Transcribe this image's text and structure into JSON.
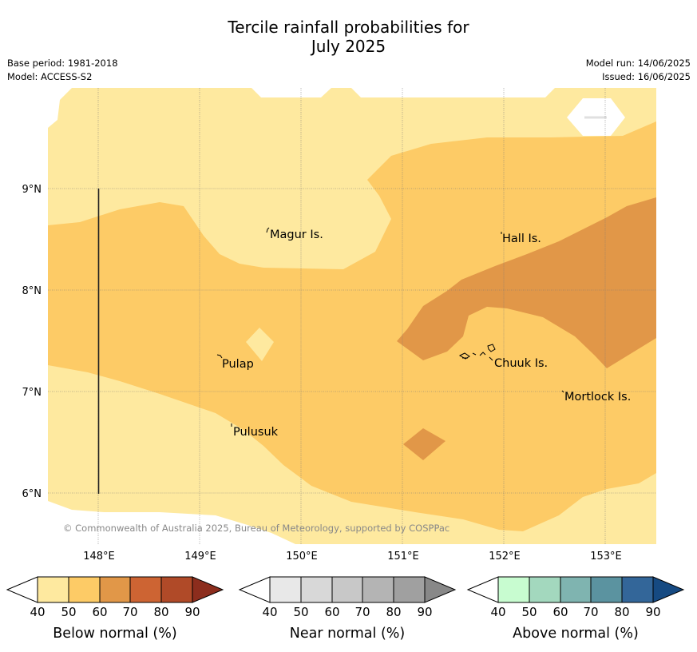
{
  "header": {
    "title_line1": "Tercile rainfall probabilities for",
    "title_line2": "July 2025",
    "base_period": "Base period: 1981-2018",
    "model": "Model: ACCESS-S2",
    "model_run": "Model run: 14/06/2025",
    "issued": "Issued: 16/06/2025"
  },
  "map": {
    "x_ticks": [
      "148°E",
      "149°E",
      "150°E",
      "151°E",
      "152°E",
      "153°E"
    ],
    "y_ticks": [
      "9°N",
      "8°N",
      "7°N",
      "6°N"
    ],
    "places": [
      "Magur Is.",
      "Hall Is.",
      "Pulap",
      "Chuuk Is.",
      "Mortlock Is.",
      "Pulusuk"
    ],
    "copyright": "© Commonwealth of Australia 2025, Bureau of Meteorology, supported by COSPPac"
  },
  "colorbars": [
    {
      "caption": "Below normal (%)",
      "labels": [
        "40",
        "50",
        "60",
        "70",
        "80",
        "90"
      ],
      "colors": [
        "#fee99f",
        "#fdcb66",
        "#e19748",
        "#cd6433",
        "#b04a28",
        "#8c2d1d"
      ]
    },
    {
      "caption": "Near normal (%)",
      "labels": [
        "40",
        "50",
        "60",
        "70",
        "80",
        "90"
      ],
      "colors": [
        "#e8e8e8",
        "#d8d8d8",
        "#c8c8c8",
        "#b4b4b4",
        "#a0a0a0",
        "#888888"
      ]
    },
    {
      "caption": "Above normal (%)",
      "labels": [
        "40",
        "50",
        "60",
        "70",
        "80",
        "90"
      ],
      "colors": [
        "#c8fcd0",
        "#a3d8be",
        "#7fb4b0",
        "#5b93a0",
        "#336699",
        "#164a82"
      ]
    }
  ],
  "colors": {
    "below_40_50": "#fee99f",
    "below_50_60": "#fdcb66",
    "below_60_70": "#e19748",
    "grid": "#777777"
  }
}
